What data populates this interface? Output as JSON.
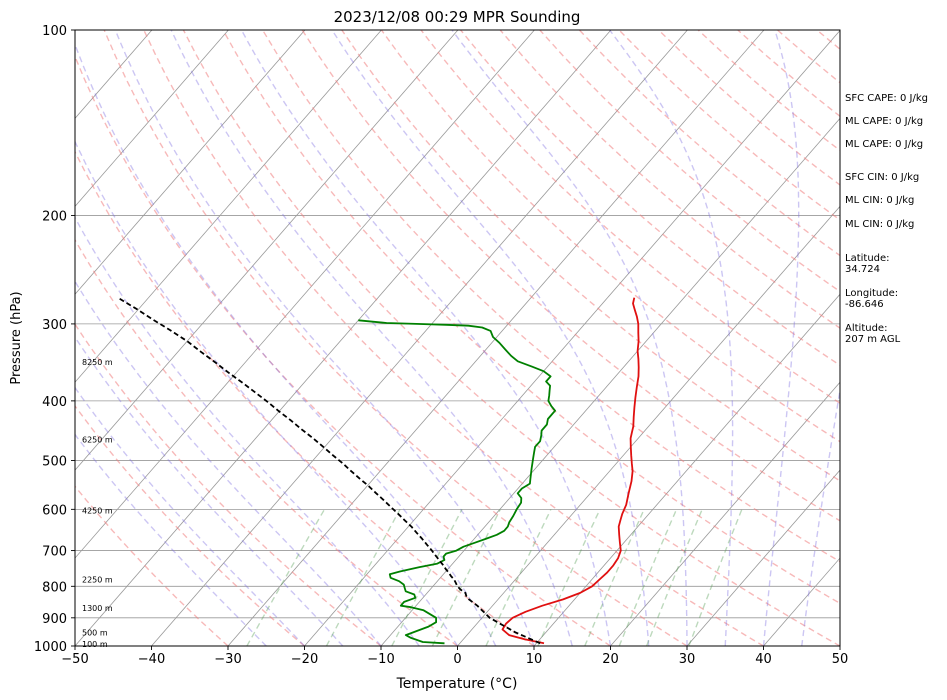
{
  "chart_data": {
    "type": "line",
    "title": "2023/12/08 00:29 MPR Sounding",
    "xlabel": "Temperature (°C)",
    "ylabel": "Pressure (hPa)",
    "xlim": [
      -50,
      50
    ],
    "ylim": [
      1000,
      100
    ],
    "y_scale": "log",
    "x_ticks": [
      "−50",
      "−40",
      "−30",
      "−20",
      "−10",
      "0",
      "10",
      "20",
      "30",
      "40",
      "50"
    ],
    "y_ticks": [
      "100",
      "200",
      "300",
      "400",
      "500",
      "600",
      "700",
      "800",
      "900",
      "1000"
    ],
    "grid": true,
    "skewed_isotherms": true,
    "series": [
      {
        "color": "#e01010",
        "points": [
          [
            11.0,
            990
          ],
          [
            8.0,
            975
          ],
          [
            5.5,
            960
          ],
          [
            4.0,
            940
          ],
          [
            3.8,
            920
          ],
          [
            4.0,
            900
          ],
          [
            5.0,
            880
          ],
          [
            6.5,
            860
          ],
          [
            8.5,
            840
          ],
          [
            10.0,
            820
          ],
          [
            10.8,
            800
          ],
          [
            11.0,
            780
          ],
          [
            11.2,
            760
          ],
          [
            11.2,
            740
          ],
          [
            11.0,
            720
          ],
          [
            10.5,
            700
          ],
          [
            9.5,
            680
          ],
          [
            8.5,
            660
          ],
          [
            7.5,
            640
          ],
          [
            7.0,
            625
          ],
          [
            6.5,
            610
          ],
          [
            6.0,
            590
          ],
          [
            5.0,
            565
          ],
          [
            4.0,
            540
          ],
          [
            3.0,
            520
          ],
          [
            2.0,
            505
          ],
          [
            1.0,
            490
          ],
          [
            0.0,
            475
          ],
          [
            -1.0,
            460
          ],
          [
            -1.5,
            450
          ],
          [
            -2.0,
            440
          ],
          [
            -3.0,
            425
          ],
          [
            -4.0,
            410
          ],
          [
            -5.0,
            395
          ],
          [
            -6.0,
            380
          ],
          [
            -7.0,
            365
          ],
          [
            -8.0,
            353
          ],
          [
            -9.0,
            342
          ],
          [
            -10.0,
            332
          ],
          [
            -11.0,
            320
          ],
          [
            -12.0,
            310
          ],
          [
            -13.0,
            300
          ],
          [
            -14.0,
            292
          ],
          [
            -15.0,
            285
          ],
          [
            -16.0,
            278
          ],
          [
            -16.5,
            272
          ]
        ]
      },
      {
        "color": "#008000",
        "points": [
          [
            -2.0,
            990
          ],
          [
            -5.0,
            985
          ],
          [
            -7.0,
            970
          ],
          [
            -8.0,
            960
          ],
          [
            -7.0,
            945
          ],
          [
            -6.0,
            930
          ],
          [
            -5.5,
            915
          ],
          [
            -6.0,
            900
          ],
          [
            -7.0,
            890
          ],
          [
            -8.5,
            875
          ],
          [
            -10.5,
            865
          ],
          [
            -12.0,
            860
          ],
          [
            -12.0,
            848
          ],
          [
            -11.0,
            835
          ],
          [
            -11.5,
            825
          ],
          [
            -13.0,
            815
          ],
          [
            -13.5,
            805
          ],
          [
            -14.0,
            795
          ],
          [
            -15.0,
            785
          ],
          [
            -16.5,
            775
          ],
          [
            -17.0,
            765
          ],
          [
            -16.0,
            757
          ],
          [
            -14.0,
            745
          ],
          [
            -12.0,
            735
          ],
          [
            -11.5,
            725
          ],
          [
            -12.0,
            716
          ],
          [
            -12.0,
            708
          ],
          [
            -11.0,
            700
          ],
          [
            -10.5,
            690
          ],
          [
            -9.5,
            680
          ],
          [
            -8.5,
            670
          ],
          [
            -7.5,
            660
          ],
          [
            -7.0,
            650
          ],
          [
            -7.0,
            640
          ],
          [
            -7.3,
            630
          ],
          [
            -7.5,
            615
          ],
          [
            -7.8,
            600
          ],
          [
            -8.0,
            585
          ],
          [
            -8.5,
            575
          ],
          [
            -9.5,
            565
          ],
          [
            -9.5,
            555
          ],
          [
            -9.0,
            545
          ],
          [
            -9.5,
            535
          ],
          [
            -10.0,
            525
          ],
          [
            -10.5,
            515
          ],
          [
            -11.0,
            505
          ],
          [
            -11.5,
            495
          ],
          [
            -12.0,
            485
          ],
          [
            -12.5,
            475
          ],
          [
            -12.5,
            465
          ],
          [
            -13.0,
            455
          ],
          [
            -13.5,
            447
          ],
          [
            -13.5,
            437
          ],
          [
            -14.0,
            428
          ],
          [
            -14.0,
            420
          ],
          [
            -14.0,
            415
          ],
          [
            -15.0,
            408
          ],
          [
            -16.0,
            400
          ],
          [
            -16.5,
            392
          ],
          [
            -17.0,
            385
          ],
          [
            -17.5,
            378
          ],
          [
            -18.5,
            372
          ],
          [
            -18.5,
            365
          ],
          [
            -20.0,
            358
          ],
          [
            -22.0,
            352
          ],
          [
            -24.5,
            345
          ],
          [
            -26.0,
            338
          ],
          [
            -27.5,
            330
          ],
          [
            -29.0,
            322
          ],
          [
            -30.5,
            315
          ],
          [
            -31.5,
            308
          ],
          [
            -33.0,
            304
          ],
          [
            -35.0,
            302
          ],
          [
            -38.0,
            301
          ],
          [
            -42.0,
            300
          ],
          [
            -46.0,
            299
          ],
          [
            -50.0,
            296
          ]
        ]
      },
      {
        "color": "#000000",
        "points": [
          [
            10.5,
            990
          ],
          [
            6.0,
            950
          ],
          [
            1.0,
            900
          ],
          [
            -2.0,
            860
          ],
          [
            -3.8,
            840
          ],
          [
            -4.5,
            830
          ],
          [
            -5.0,
            820
          ],
          [
            -6.0,
            810
          ],
          [
            -6.8,
            800
          ],
          [
            -7.4,
            790
          ],
          [
            -8.0,
            780
          ],
          [
            -8.8,
            770
          ],
          [
            -9.5,
            760
          ],
          [
            -10.3,
            750
          ],
          [
            -11.0,
            740
          ],
          [
            -11.8,
            730
          ],
          [
            -12.6,
            720
          ],
          [
            -13.4,
            710
          ],
          [
            -14.2,
            700
          ],
          [
            -15.5,
            685
          ],
          [
            -16.8,
            670
          ],
          [
            -18.2,
            655
          ],
          [
            -19.6,
            640
          ],
          [
            -21.2,
            625
          ],
          [
            -22.8,
            610
          ],
          [
            -24.5,
            595
          ],
          [
            -26.2,
            580
          ],
          [
            -28.0,
            565
          ],
          [
            -29.8,
            550
          ],
          [
            -31.8,
            535
          ],
          [
            -33.8,
            520
          ],
          [
            -35.8,
            505
          ],
          [
            -38.0,
            490
          ],
          [
            -40.2,
            475
          ],
          [
            -42.5,
            460
          ],
          [
            -45.0,
            445
          ],
          [
            -47.5,
            430
          ],
          [
            -50.0,
            416
          ],
          [
            -52.5,
            402
          ],
          [
            -55.2,
            388
          ],
          [
            -58.0,
            374
          ],
          [
            -61.0,
            360
          ],
          [
            -64.0,
            346
          ],
          [
            -67.0,
            333
          ],
          [
            -70.0,
            320
          ],
          [
            -73.5,
            307
          ],
          [
            -77.0,
            295
          ],
          [
            -80.5,
            283
          ],
          [
            -84.0,
            272
          ]
        ]
      }
    ],
    "height_labels": [
      {
        "text": "100 m",
        "p": 993
      },
      {
        "text": "500 m",
        "p": 951
      },
      {
        "text": "1300 m",
        "p": 868
      },
      {
        "text": "2250 m",
        "p": 780
      },
      {
        "text": "4250 m",
        "p": 603
      },
      {
        "text": "6250 m",
        "p": 462
      },
      {
        "text": "8250 m",
        "p": 346
      }
    ],
    "annotations": [
      "SFC CAPE: 0 J/kg",
      "ML CAPE: 0 J/kg",
      "ML CAPE: 0 J/kg",
      "SFC CIN: 0 J/kg",
      "ML CIN: 0 J/kg",
      "ML CIN: 0 J/kg",
      "Latitude:\n34.724",
      "Longitude:\n-86.646",
      "Altitude:\n207 m AGL"
    ],
    "colors": {
      "isotherm": "#999999",
      "dry_adiabat": "#f08080",
      "moist_adiabat": "#8070e0",
      "mixing_ratio": "#5aa05a"
    }
  }
}
